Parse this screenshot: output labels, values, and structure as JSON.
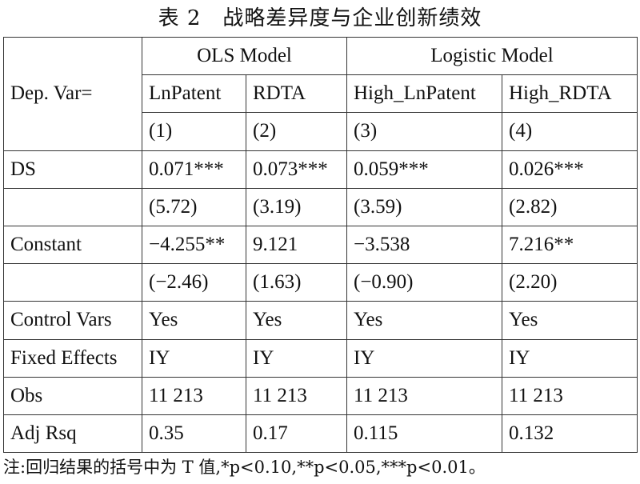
{
  "title": "表 2　战略差异度与企业创新绩效",
  "table": {
    "dep_var_label": "Dep. Var=",
    "groups": [
      "OLS Model",
      "Logistic Model"
    ],
    "columns": [
      "LnPatent",
      "RDTA",
      "High_LnPatent",
      "High_RDTA"
    ],
    "model_numbers": [
      "(1)",
      "(2)",
      "(3)",
      "(4)"
    ],
    "rows": [
      {
        "label": "DS",
        "cells": [
          "0.071***",
          "0.073***",
          "0.059***",
          "0.026***"
        ]
      },
      {
        "label": "",
        "cells": [
          "(5.72)",
          "(3.19)",
          "(3.59)",
          "(2.82)"
        ]
      },
      {
        "label": "Constant",
        "cells": [
          "−4.255**",
          "9.121",
          "−3.538",
          "7.216**"
        ]
      },
      {
        "label": "",
        "cells": [
          "(−2.46)",
          "(1.63)",
          "(−0.90)",
          "(2.20)"
        ]
      },
      {
        "label": "Control Vars",
        "cells": [
          "Yes",
          "Yes",
          "Yes",
          "Yes"
        ]
      },
      {
        "label": "Fixed Effects",
        "cells": [
          "IY",
          "IY",
          "IY",
          "IY"
        ]
      },
      {
        "label": "Obs",
        "cells": [
          "11 213",
          "11 213",
          "11 213",
          "11 213"
        ]
      },
      {
        "label": "Adj Rsq",
        "cells": [
          "0.35",
          "0.17",
          "0.115",
          "0.132"
        ]
      }
    ]
  },
  "note": "注:回归结果的括号中为 T 值,*p<0.10,**p<0.05,***p<0.01。"
}
